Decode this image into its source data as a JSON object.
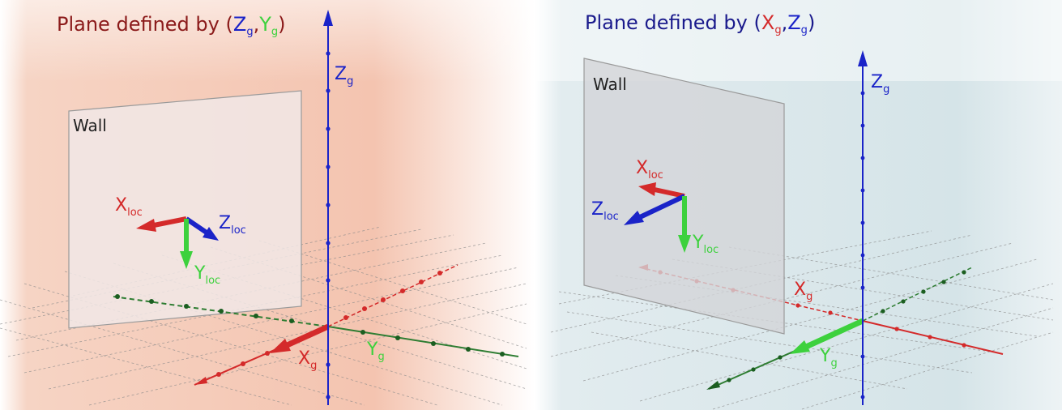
{
  "left_panel": {
    "title": {
      "prefix": "Plane defined by ",
      "open": "(",
      "a_main": "Z",
      "a_sub": "g",
      "sep": ",",
      "b_main": "Y",
      "b_sub": "g",
      "close": ")"
    },
    "wall_label": "Wall",
    "axis_z": {
      "main": "Z",
      "sub": "g"
    },
    "axis_x": {
      "main": "X",
      "sub": "g"
    },
    "axis_y": {
      "main": "Y",
      "sub": "g"
    },
    "loc_x": {
      "main": "X",
      "sub": "loc"
    },
    "loc_y": {
      "main": "Y",
      "sub": "loc"
    },
    "loc_z": {
      "main": "Z",
      "sub": "loc"
    }
  },
  "right_panel": {
    "title": {
      "prefix": "Plane defined by ",
      "open": "(",
      "a_main": "X",
      "a_sub": "g",
      "sep": ",",
      "b_main": "Z",
      "b_sub": "g",
      "close": ")"
    },
    "wall_label": "Wall",
    "axis_z": {
      "main": "Z",
      "sub": "g"
    },
    "axis_x": {
      "main": "X",
      "sub": "g"
    },
    "axis_y": {
      "main": "Y",
      "sub": "g"
    },
    "loc_x": {
      "main": "X",
      "sub": "loc"
    },
    "loc_y": {
      "main": "Y",
      "sub": "loc"
    },
    "loc_z": {
      "main": "Z",
      "sub": "loc"
    }
  },
  "colors": {
    "x_axis": "#d42a2a",
    "y_axis": "#2e7d32",
    "y_arrow": "#3dd13d",
    "z_axis": "#1a23c8",
    "title_left": "#8b1a1a",
    "title_right": "#1a1a8c",
    "plane_left": "#f4c7b4",
    "plane_right": "#d7e6ea",
    "wall_fill_left": "#f1e8e6",
    "wall_fill_right": "#d3d5d8"
  }
}
